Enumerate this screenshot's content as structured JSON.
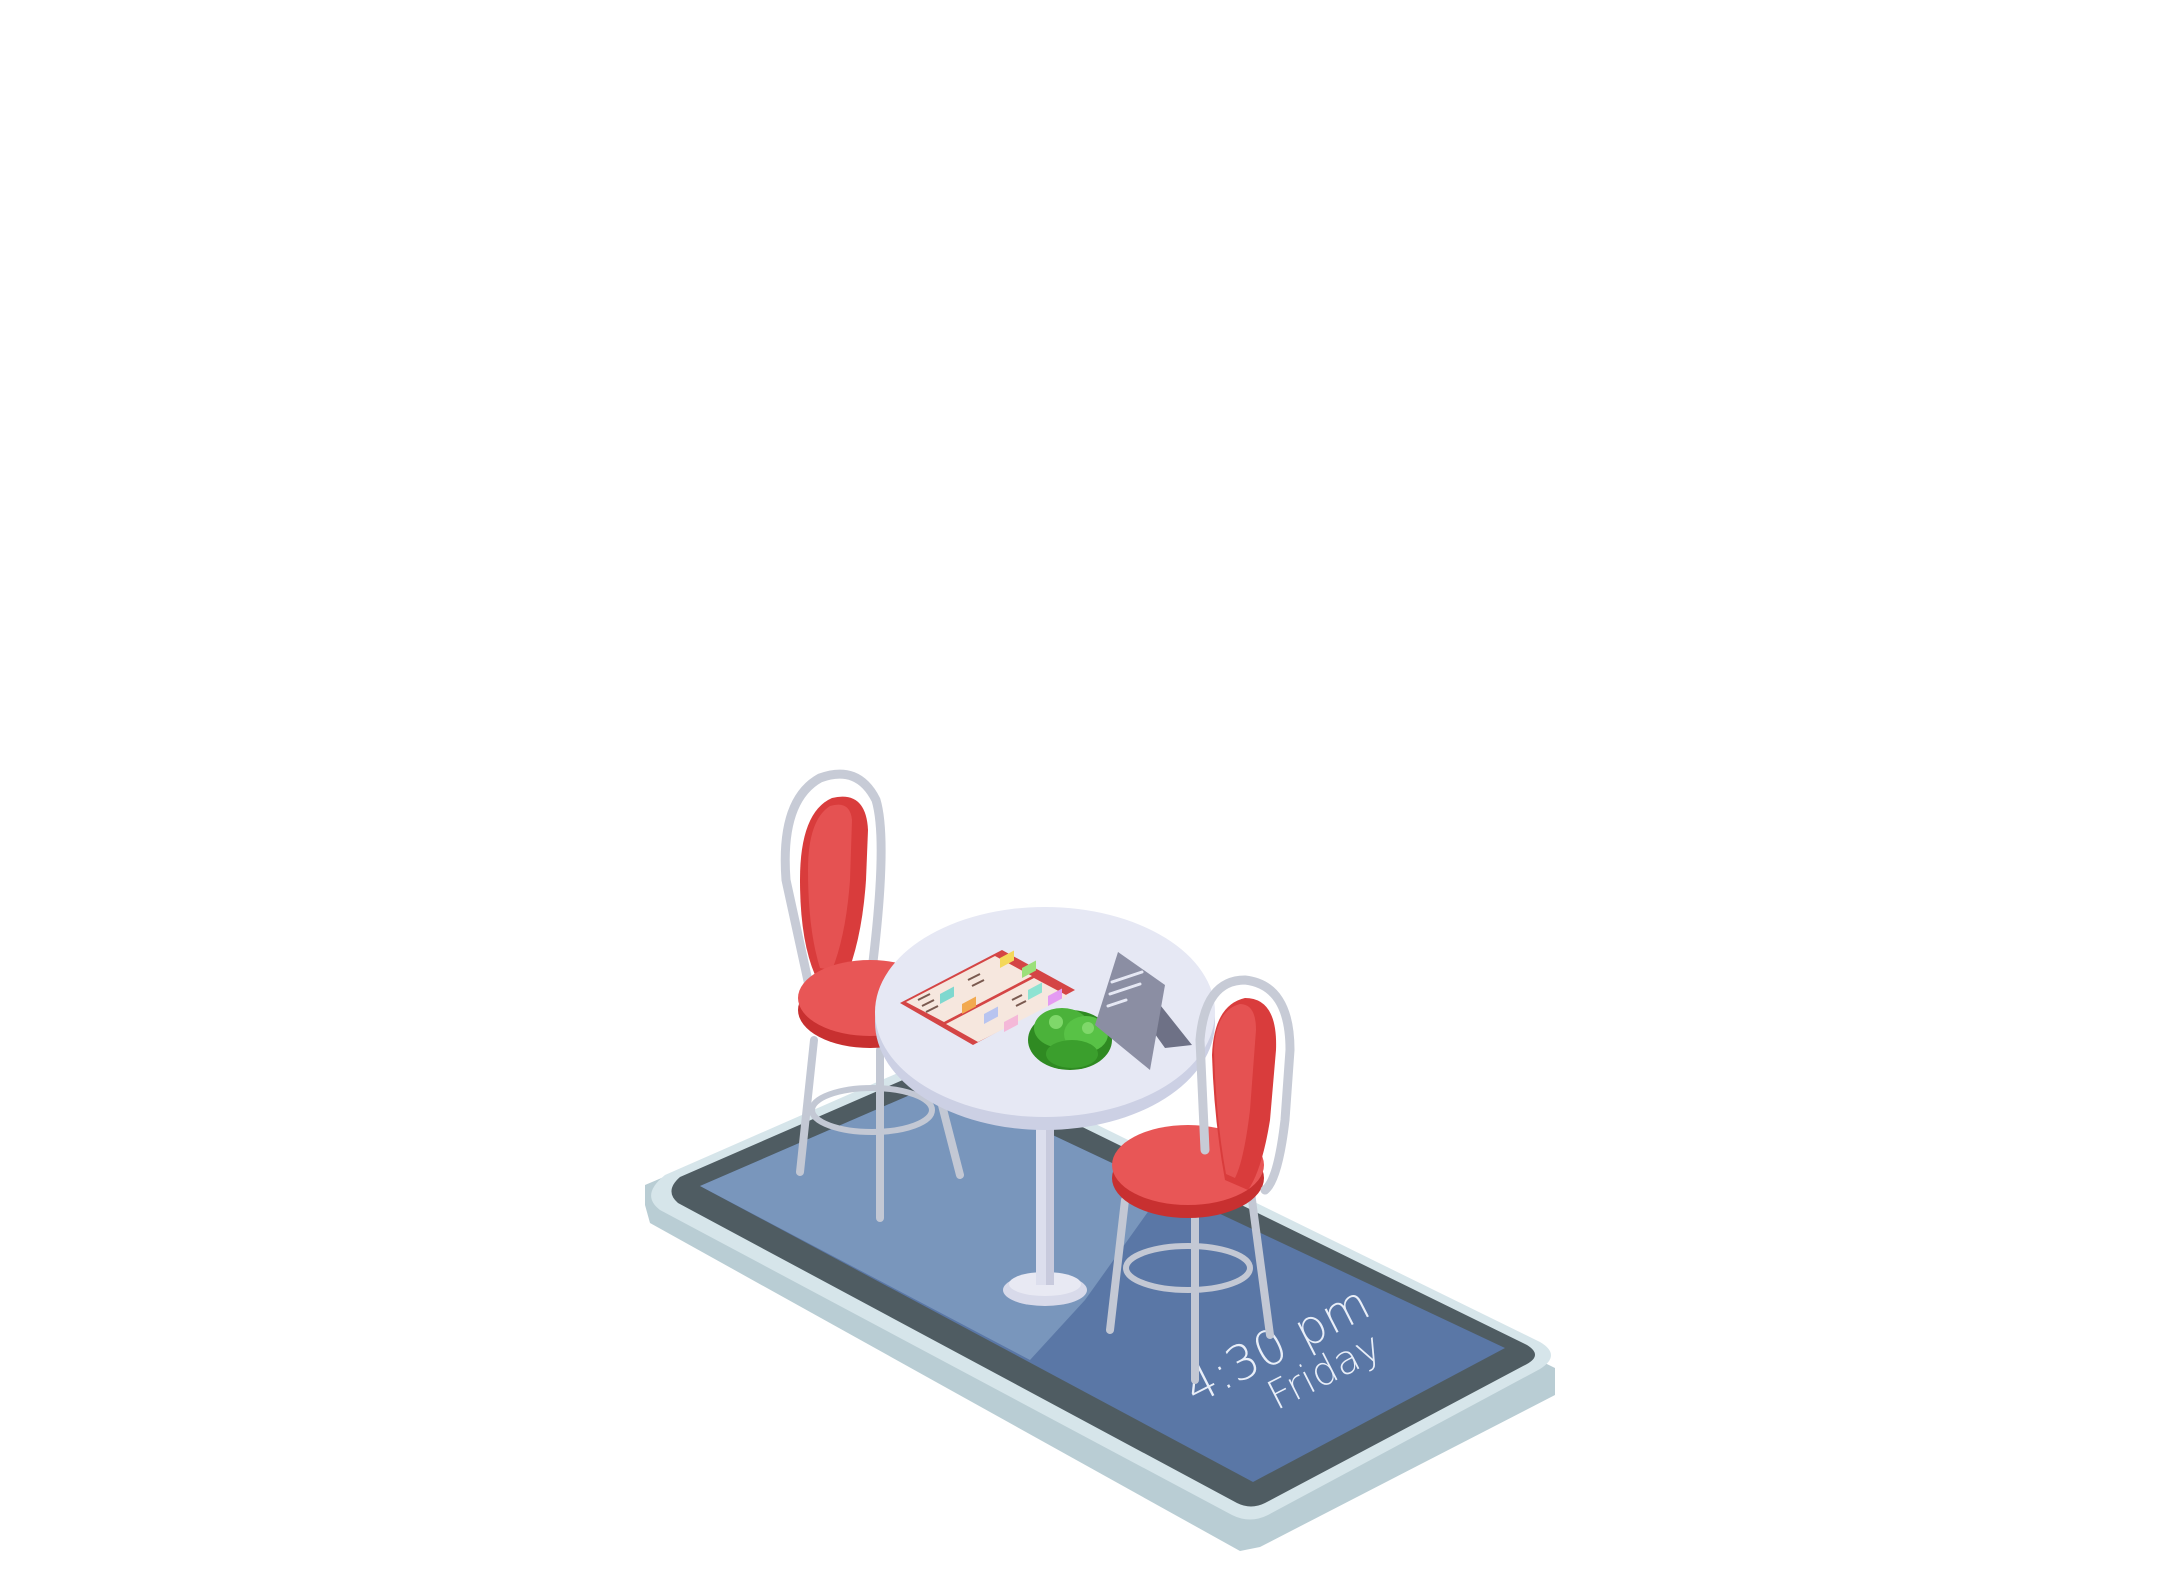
{
  "lockscreen": {
    "time": "4:30 pm",
    "day": "Friday"
  },
  "icons": {
    "phone": "smartphone-icon",
    "table": "cafe-table-icon",
    "chair": "cafe-chair-icon",
    "menu": "open-menu-icon",
    "plant": "plant-icon",
    "sign": "table-tent-sign-icon"
  },
  "colors": {
    "background": "#ffffff",
    "phone_body": "#cfe0e6",
    "phone_bezel": "#4e5a5f",
    "screen": "#5d7aa8",
    "screen_light": "#7d98bd",
    "chair_red": "#dc4040",
    "chair_red_light": "#e85656",
    "chair_metal": "#c3c8d4",
    "table_top": "#e6e8f4",
    "menu_red": "#d84a4a",
    "plant_green": "#3c9a2c",
    "sign_gray": "#8b8ea3"
  }
}
